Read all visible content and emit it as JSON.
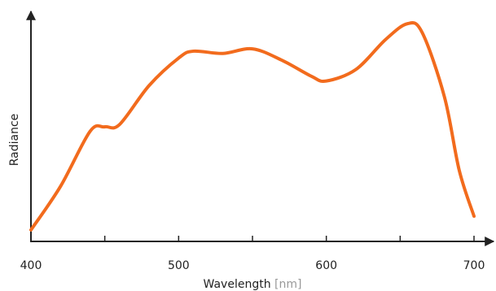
{
  "chart_data": {
    "type": "line",
    "ylabel": "Radiance",
    "xlabel": "Wavelength",
    "xunit": "[nm]",
    "x": [
      400,
      420,
      440,
      450,
      460,
      480,
      500,
      510,
      530,
      550,
      570,
      590,
      600,
      620,
      640,
      655,
      665,
      680,
      690,
      700
    ],
    "series": [
      {
        "color": "#f26b1d",
        "values": [
          0.05,
          0.24,
          0.48,
          0.5,
          0.51,
          0.68,
          0.8,
          0.83,
          0.82,
          0.84,
          0.79,
          0.72,
          0.7,
          0.75,
          0.88,
          0.95,
          0.91,
          0.63,
          0.31,
          0.11
        ]
      }
    ],
    "xlim": [
      400,
      700
    ],
    "xticks": [
      400,
      500,
      600,
      700
    ],
    "xminorticks": [
      450,
      550,
      650
    ],
    "ylim": [
      0,
      1
    ]
  }
}
